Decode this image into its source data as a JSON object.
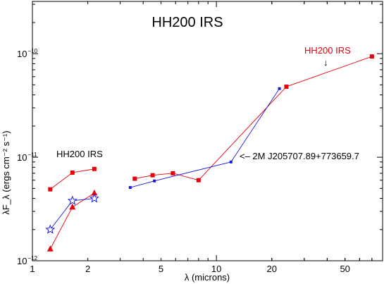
{
  "chart_data": {
    "type": "scatter",
    "title": "HH200 IRS",
    "xlabel": "λ (microns)",
    "ylabel": "λF_λ (ergs cm⁻² s⁻¹)",
    "x_scale": "log",
    "y_scale": "log",
    "xlim": [
      1,
      80
    ],
    "ylim": [
      1e-12,
      3.2e-10
    ],
    "x_ticks": [
      {
        "value": 1,
        "label": "1"
      },
      {
        "value": 2,
        "label": "2"
      },
      {
        "value": 5,
        "label": "5"
      },
      {
        "value": 10,
        "label": "10"
      },
      {
        "value": 20,
        "label": "20"
      },
      {
        "value": 50,
        "label": "50"
      }
    ],
    "y_ticks": [
      {
        "value": 1e-12,
        "base": "10",
        "exp": "−12"
      },
      {
        "value": 1e-11,
        "base": "10",
        "exp": "−11"
      },
      {
        "value": 1e-10,
        "base": "10",
        "exp": "−10"
      }
    ],
    "grid": false,
    "colors": {
      "red": "#e8000b",
      "blue": "#1a1adb"
    },
    "series": [
      {
        "color": "red",
        "marker": "square",
        "line": true,
        "points": [
          [
            1.25,
            4.9e-12
          ],
          [
            1.65,
            7.1e-12
          ],
          [
            2.17,
            7.7e-12
          ]
        ]
      },
      {
        "color": "red",
        "marker": "triangle",
        "line": true,
        "points": [
          [
            1.25,
            1.3e-12
          ],
          [
            1.65,
            3.3e-12
          ],
          [
            2.17,
            4.5e-12
          ]
        ]
      },
      {
        "color": "blue",
        "marker": "star",
        "line": true,
        "points": [
          [
            1.25,
            2e-12
          ],
          [
            1.65,
            3.8e-12
          ],
          [
            2.17,
            4e-12
          ]
        ]
      },
      {
        "color": "red",
        "marker": "square",
        "line": true,
        "points": [
          [
            3.6,
            6.2e-12
          ],
          [
            4.5,
            6.7e-12
          ],
          [
            5.8,
            7e-12
          ],
          [
            8.0,
            6e-12
          ],
          [
            24,
            4.8e-11
          ],
          [
            70,
            9.4e-11
          ]
        ]
      },
      {
        "color": "blue",
        "marker": "small-square",
        "line": true,
        "points": [
          [
            3.4,
            5.1e-12
          ],
          [
            4.6,
            5.9e-12
          ],
          [
            12,
            9e-12
          ],
          [
            22,
            4.6e-11
          ]
        ]
      }
    ],
    "annotations": [
      {
        "text": "HH200 IRS",
        "color": "black"
      },
      {
        "text": "<–  2M J205707.89+773659.7",
        "color": "black"
      },
      {
        "text": "HH200 IRS",
        "color": "red"
      },
      {
        "text": "↓",
        "color": "black"
      }
    ]
  }
}
